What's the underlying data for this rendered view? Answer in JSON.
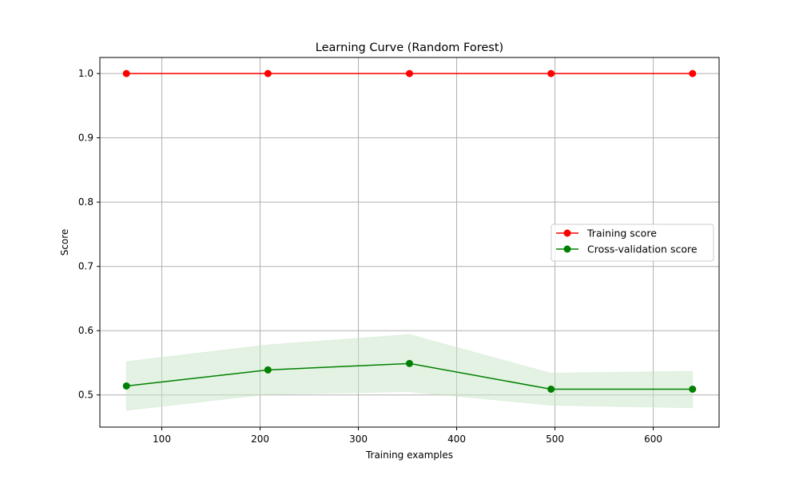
{
  "chart_data": {
    "type": "line",
    "title": "Learning Curve (Random Forest)",
    "xlabel": "Training examples",
    "ylabel": "Score",
    "xlim": [
      37,
      667
    ],
    "ylim": [
      0.45,
      1.025
    ],
    "xticks": [
      100,
      200,
      300,
      400,
      500,
      600
    ],
    "yticks": [
      0.5,
      0.6,
      0.7,
      0.8,
      0.9,
      1.0
    ],
    "xtick_labels": [
      "100",
      "200",
      "300",
      "400",
      "500",
      "600"
    ],
    "ytick_labels": [
      "0.5",
      "0.6",
      "0.7",
      "0.8",
      "0.9",
      "1.0"
    ],
    "grid": true,
    "legend_position": "center-right",
    "x": [
      64,
      208,
      352,
      496,
      640
    ],
    "series": [
      {
        "name": "Training score",
        "color": "#ff0000",
        "values": [
          1.0,
          1.0,
          1.0,
          1.0,
          1.0
        ],
        "band_lower": [
          1.0,
          1.0,
          1.0,
          1.0,
          1.0
        ],
        "band_upper": [
          1.0,
          1.0,
          1.0,
          1.0,
          1.0
        ]
      },
      {
        "name": "Cross-validation score",
        "color": "#008000",
        "band_color": "#c8e6c8",
        "values": [
          0.514,
          0.539,
          0.549,
          0.509,
          0.509
        ],
        "band_lower": [
          0.476,
          0.501,
          0.505,
          0.484,
          0.48
        ],
        "band_upper": [
          0.552,
          0.578,
          0.594,
          0.534,
          0.537
        ]
      }
    ]
  }
}
